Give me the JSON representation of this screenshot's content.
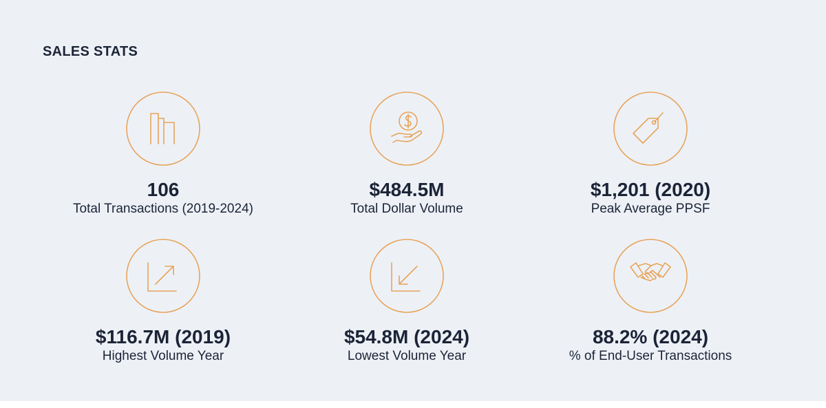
{
  "header": {
    "title": "SALES STATS"
  },
  "stats": [
    {
      "value": "106",
      "label": "Total Transactions (2019-2024)"
    },
    {
      "value": "$484.5M",
      "label": "Total Dollar Volume"
    },
    {
      "value": "$1,201 (2020)",
      "label": "Peak Average PPSF"
    },
    {
      "value": "$116.7M (2019)",
      "label": "Highest Volume Year"
    },
    {
      "value": "$54.8M (2024)",
      "label": "Lowest Volume Year"
    },
    {
      "value": "88.2% (2024)",
      "label": "% of End-User Transactions"
    }
  ]
}
